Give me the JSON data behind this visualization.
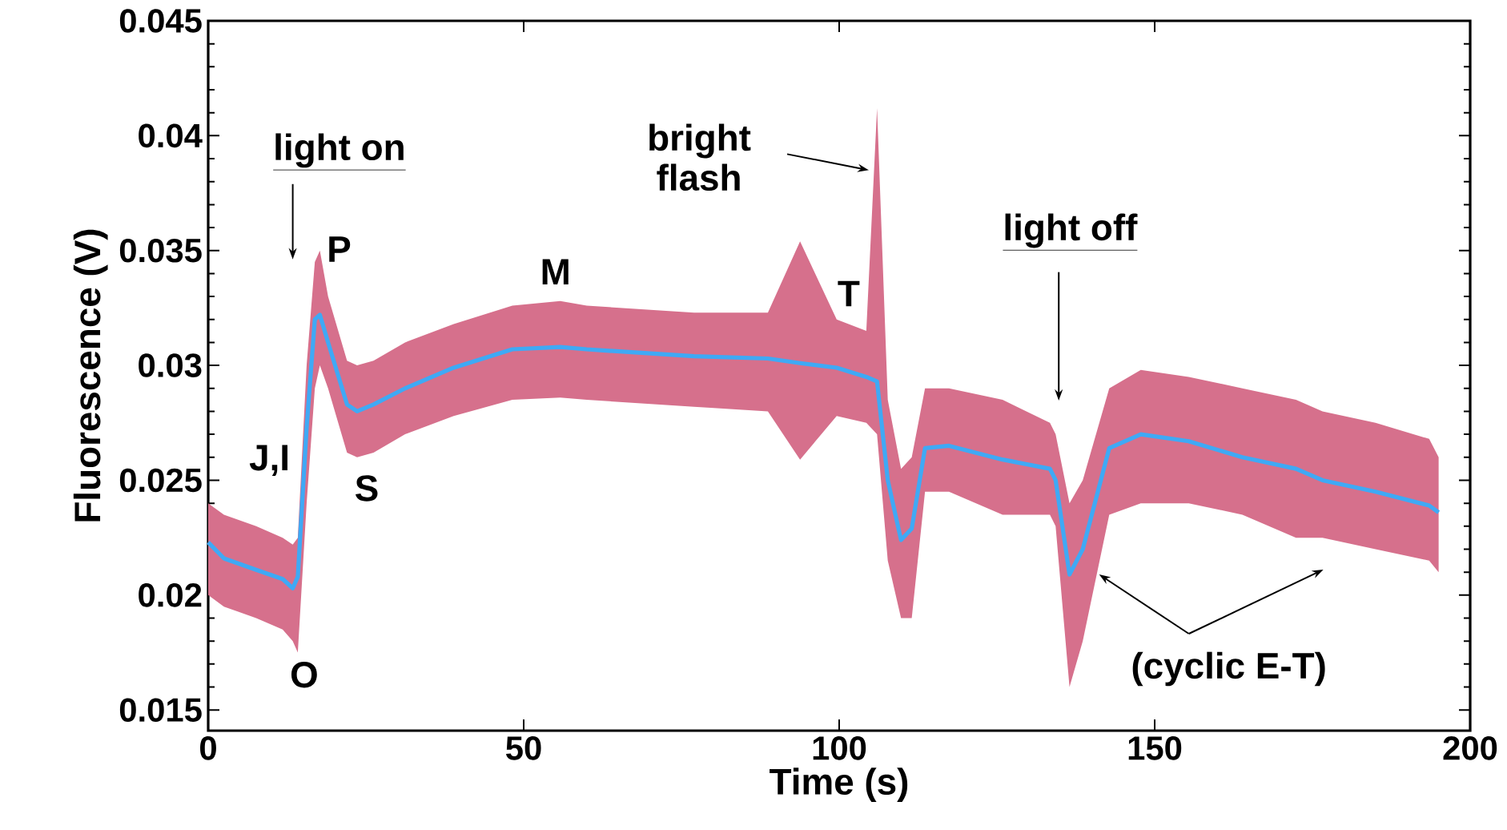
{
  "chart_data": {
    "type": "line",
    "xlabel": "Time (s)",
    "ylabel": "Fluorescence (V)",
    "xlim": [
      0,
      200
    ],
    "ylim": [
      0.0141,
      0.045
    ],
    "xticks": [
      0,
      50,
      100,
      150,
      200
    ],
    "yticks": [
      0.015,
      0.02,
      0.025,
      0.03,
      0.035,
      0.04,
      0.045
    ],
    "marker": "none",
    "line_style": "solid",
    "grid": false,
    "series": [
      {
        "color": "#3fa9f5",
        "x": [
          0,
          2.5,
          7.6,
          11.8,
          13.4,
          14.2,
          15.6,
          16.9,
          17.7,
          19.0,
          22.0,
          23.6,
          26.2,
          31.2,
          38.9,
          48.2,
          55.8,
          60,
          77,
          88.7,
          93.8,
          99.6,
          104.3,
          106,
          107.7,
          109.8,
          111.5,
          113.6,
          117.4,
          125.9,
          133.4,
          134.3,
          136.5,
          138.6,
          142.8,
          147.8,
          155.4,
          163.9,
          172.4,
          176.6,
          185,
          193.5,
          195
        ],
        "values": [
          0.0223,
          0.0216,
          0.0211,
          0.0207,
          0.0203,
          0.0208,
          0.0273,
          0.032,
          0.0322,
          0.031,
          0.0283,
          0.028,
          0.0283,
          0.029,
          0.0299,
          0.0307,
          0.0308,
          0.0307,
          0.0304,
          0.0303,
          0.0301,
          0.0299,
          0.0295,
          0.0293,
          0.025,
          0.0224,
          0.0229,
          0.0264,
          0.0265,
          0.0259,
          0.0255,
          0.025,
          0.0209,
          0.022,
          0.0264,
          0.027,
          0.0267,
          0.026,
          0.0255,
          0.025,
          0.0245,
          0.0239,
          0.0236
        ],
        "lower": [
          0.02,
          0.0195,
          0.019,
          0.0185,
          0.018,
          0.0175,
          0.024,
          0.029,
          0.03,
          0.029,
          0.0262,
          0.026,
          0.0262,
          0.027,
          0.0278,
          0.0285,
          0.0286,
          0.0285,
          0.0282,
          0.028,
          0.0259,
          0.0278,
          0.0275,
          0.027,
          0.0215,
          0.019,
          0.019,
          0.0245,
          0.0245,
          0.0235,
          0.0235,
          0.023,
          0.016,
          0.018,
          0.0235,
          0.024,
          0.024,
          0.0235,
          0.0225,
          0.0225,
          0.022,
          0.0215,
          0.021
        ],
        "upper": [
          0.024,
          0.0235,
          0.023,
          0.0225,
          0.0222,
          0.0225,
          0.03,
          0.0345,
          0.035,
          0.033,
          0.0302,
          0.03,
          0.0302,
          0.031,
          0.0318,
          0.0326,
          0.0328,
          0.0326,
          0.0323,
          0.0323,
          0.0354,
          0.032,
          0.0315,
          0.0412,
          0.0285,
          0.0255,
          0.026,
          0.029,
          0.029,
          0.0285,
          0.0275,
          0.027,
          0.024,
          0.025,
          0.029,
          0.0298,
          0.0295,
          0.029,
          0.0285,
          0.028,
          0.0275,
          0.0268,
          0.026
        ]
      }
    ],
    "annotations": [
      "light on",
      {
        "text": "P",
        "x": 17.7,
        "y": 0.0322
      },
      {
        "text": "J,I",
        "x": 12,
        "y": 0.0207
      },
      {
        "text": "O",
        "x": 14.2,
        "y": 0.0203
      },
      {
        "text": "S",
        "x": 23.6,
        "y": 0.028
      },
      {
        "text": "M",
        "x": 55.8,
        "y": 0.0308
      },
      {
        "text": "T",
        "x": 104.3,
        "y": 0.0295
      },
      {
        "text": "bright flash",
        "x": 104.7,
        "y": 0.0385
      },
      "light off",
      {
        "text": "(cyclic E-T)",
        "x": 141.2,
        "y": 0.0209
      }
    ]
  }
}
